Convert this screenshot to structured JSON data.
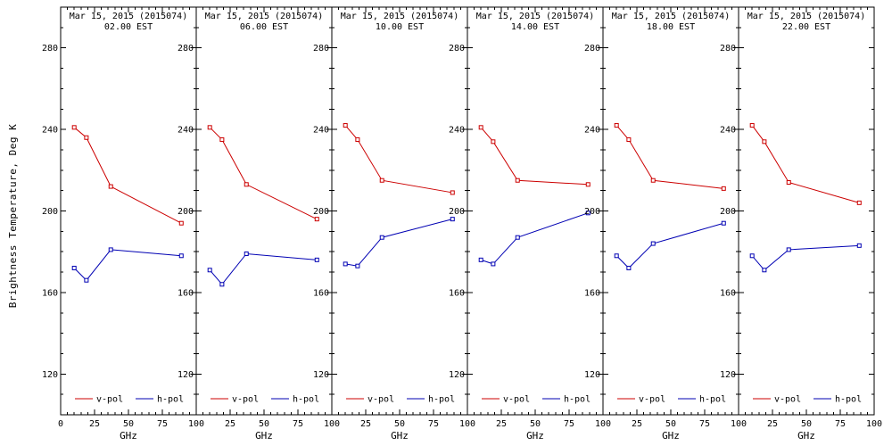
{
  "chart_data": {
    "type": "line",
    "title": "Mar 15, 2015 (2015074)",
    "ylabel": "Brightness Temperature, Deg K",
    "xlabel": "GHz",
    "xlim": [
      0,
      100
    ],
    "ylim": [
      100,
      300
    ],
    "xticks": [
      0,
      25,
      50,
      75,
      100
    ],
    "yticks": [
      120,
      160,
      200,
      240,
      280
    ],
    "x": [
      10,
      19,
      37,
      89
    ],
    "grid": false,
    "legend_position": "bottom-inside-each-panel",
    "legend": [
      {
        "label": "v-pol",
        "color": "#cc0000"
      },
      {
        "label": "h-pol",
        "color": "#0000b3"
      }
    ],
    "panels": [
      {
        "title": "Mar 15, 2015 (2015074)",
        "subtitle": "02.00 EST",
        "series": [
          {
            "name": "v-pol",
            "values": [
              241,
              236,
              212,
              194
            ]
          },
          {
            "name": "h-pol",
            "values": [
              172,
              166,
              181,
              178
            ]
          }
        ]
      },
      {
        "title": "Mar 15, 2015 (2015074)",
        "subtitle": "06.00 EST",
        "series": [
          {
            "name": "v-pol",
            "values": [
              241,
              235,
              213,
              196
            ]
          },
          {
            "name": "h-pol",
            "values": [
              171,
              164,
              179,
              176
            ]
          }
        ]
      },
      {
        "title": "Mar 15, 2015 (2015074)",
        "subtitle": "10.00 EST",
        "series": [
          {
            "name": "v-pol",
            "values": [
              242,
              235,
              215,
              209
            ]
          },
          {
            "name": "h-pol",
            "values": [
              174,
              173,
              187,
              196
            ]
          }
        ]
      },
      {
        "title": "Mar 15, 2015 (2015074)",
        "subtitle": "14.00 EST",
        "series": [
          {
            "name": "v-pol",
            "values": [
              241,
              234,
              215,
              213
            ]
          },
          {
            "name": "h-pol",
            "values": [
              176,
              174,
              187,
              199
            ]
          }
        ]
      },
      {
        "title": "Mar 15, 2015 (2015074)",
        "subtitle": "18.00 EST",
        "series": [
          {
            "name": "v-pol",
            "values": [
              242,
              235,
              215,
              211
            ]
          },
          {
            "name": "h-pol",
            "values": [
              178,
              172,
              184,
              194
            ]
          }
        ]
      },
      {
        "title": "Mar 15, 2015 (2015074)",
        "subtitle": "22.00 EST",
        "series": [
          {
            "name": "v-pol",
            "values": [
              242,
              234,
              214,
              204
            ]
          },
          {
            "name": "h-pol",
            "values": [
              178,
              171,
              181,
              183
            ]
          }
        ]
      }
    ]
  }
}
